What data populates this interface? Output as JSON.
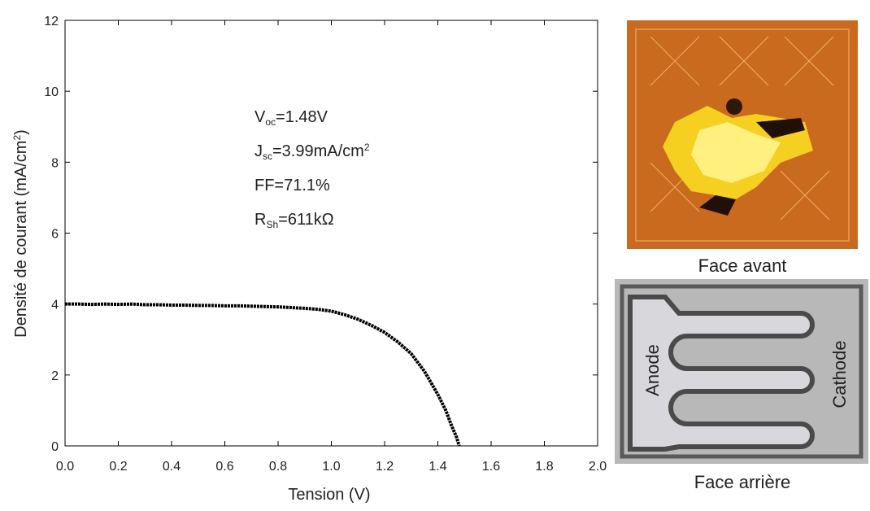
{
  "chart_data": {
    "type": "line",
    "xlabel": "Tension (V)",
    "ylabel": {
      "text": "Densité de courant (mA/cm",
      "sup": "2",
      "rest": ")"
    },
    "annotations": [
      {
        "text": "V",
        "sub": "oc",
        "rest": "=1.48V"
      },
      {
        "text": "J",
        "sub": "sc",
        "rest": "=3.99mA/cm",
        "sup": "2"
      },
      {
        "text": "FF=71.1%"
      },
      {
        "text": "R",
        "sub": "Sh",
        "rest": "=611kΩ"
      }
    ],
    "x": [
      0,
      0.05,
      0.1,
      0.15,
      0.2,
      0.25,
      0.3,
      0.35,
      0.4,
      0.45,
      0.5,
      0.55,
      0.6,
      0.65,
      0.7,
      0.75,
      0.8,
      0.85,
      0.9,
      0.95,
      1.0,
      1.05,
      1.1,
      1.15,
      1.2,
      1.25,
      1.3,
      1.35,
      1.4,
      1.43,
      1.45,
      1.47,
      1.48
    ],
    "values": [
      4.0,
      4.0,
      3.99,
      4.0,
      3.99,
      4.0,
      3.98,
      3.98,
      3.97,
      3.97,
      3.96,
      3.96,
      3.95,
      3.95,
      3.94,
      3.93,
      3.92,
      3.9,
      3.88,
      3.85,
      3.8,
      3.7,
      3.57,
      3.4,
      3.2,
      2.93,
      2.6,
      2.1,
      1.45,
      1.0,
      0.6,
      0.25,
      0
    ],
    "color": "#000000",
    "xlim": [
      0,
      2
    ],
    "ylim": [
      0,
      12
    ],
    "xticks": [
      {
        "value": 0,
        "label": "0.0"
      },
      0.2,
      0.4,
      0.6,
      0.8,
      {
        "value": 1,
        "label": "1.0"
      },
      1.2,
      1.4,
      1.6,
      1.8,
      {
        "value": 2,
        "label": "2.0"
      }
    ],
    "yticks": [
      0,
      2,
      4,
      6,
      8,
      10,
      12
    ]
  },
  "images": {
    "front": {
      "caption": "Face avant"
    },
    "back": {
      "caption": "Face arrière",
      "anode": "Anode",
      "cathode": "Cathode"
    }
  }
}
